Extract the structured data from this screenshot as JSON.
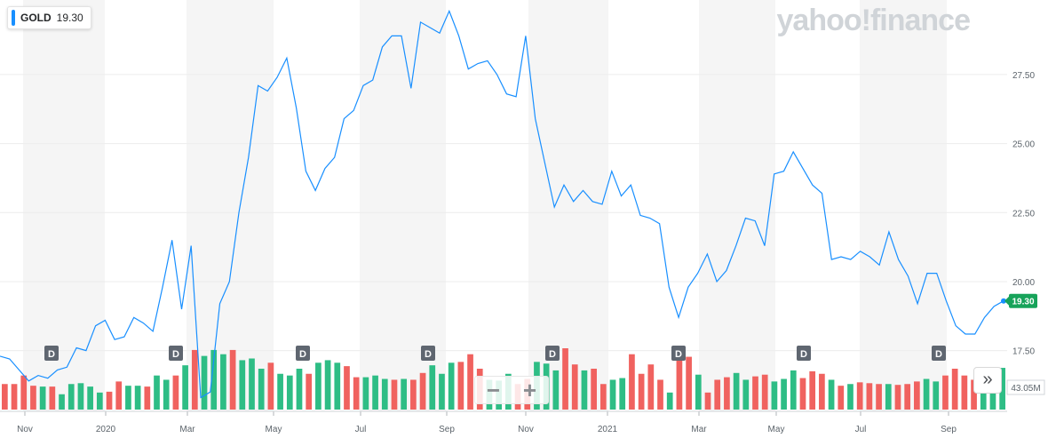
{
  "ticker": {
    "symbol": "GOLD",
    "price": "19.30"
  },
  "brand": "yahoo!finance",
  "zoom": {
    "minus": "−",
    "plus": "+"
  },
  "expand_icon": "»",
  "colors": {
    "line": "#188fff",
    "up": "#2ebd85",
    "down": "#f0625f",
    "badge": "#5f6670",
    "last": "#17a35a"
  },
  "chart_data": {
    "type": "line",
    "title": "",
    "xlabel": "",
    "ylabel": "",
    "ylim": [
      15.3,
      30.2
    ],
    "yticks": [
      "17.50",
      "20.00",
      "22.50",
      "25.00",
      "27.50"
    ],
    "xticks": [
      "Nov",
      "2020",
      "Mar",
      "May",
      "Jul",
      "Sep",
      "Nov",
      "2021",
      "Mar",
      "May",
      "Jul",
      "Sep"
    ],
    "grid": true,
    "last_price_label": "19.30",
    "volume_label": "43.05M",
    "dividend_markers": [
      "D",
      "D",
      "D",
      "D",
      "D",
      "D",
      "D",
      "D"
    ],
    "series": [
      {
        "values": [
          17.3,
          17.2,
          16.8,
          16.4,
          16.6,
          16.5,
          16.8,
          16.9,
          17.6,
          17.5,
          18.4,
          18.6,
          17.9,
          18.0,
          18.7,
          18.5,
          18.2,
          19.8,
          21.5,
          19.0,
          21.3,
          15.8,
          16.0,
          19.2,
          20.0,
          22.5,
          24.5,
          27.1,
          26.9,
          27.4,
          28.1,
          26.3,
          24.0,
          23.3,
          24.1,
          24.5,
          25.9,
          26.2,
          27.1,
          27.3,
          28.5,
          28.9,
          28.9,
          27.0,
          29.4,
          29.2,
          29.0,
          29.8,
          28.9,
          27.7,
          27.9,
          28.0,
          27.5,
          26.8,
          26.7,
          28.9,
          25.9,
          24.3,
          22.7,
          23.5,
          22.9,
          23.3,
          22.9,
          22.8,
          24.0,
          23.1,
          23.5,
          22.4,
          22.3,
          22.1,
          19.8,
          18.7,
          19.8,
          20.3,
          21.0,
          20.0,
          20.4,
          21.3,
          22.3,
          22.2,
          21.3,
          23.9,
          24.0,
          24.7,
          24.1,
          23.5,
          23.2,
          20.8,
          20.9,
          20.8,
          21.1,
          20.9,
          20.6,
          21.8,
          20.8,
          20.2,
          19.2,
          20.3,
          20.3,
          19.3,
          18.4,
          18.1,
          18.1,
          18.7,
          19.1,
          19.3
        ]
      }
    ],
    "volume": {
      "max": 120,
      "values": [
        30,
        30,
        40,
        28,
        27,
        27,
        18,
        30,
        31,
        27,
        20,
        21,
        33,
        28,
        28,
        27,
        40,
        35,
        40,
        52,
        70,
        63,
        70,
        65,
        70,
        58,
        60,
        48,
        55,
        42,
        40,
        48,
        42,
        55,
        58,
        55,
        51,
        38,
        38,
        40,
        36,
        35,
        36,
        35,
        43,
        52,
        42,
        55,
        56,
        65,
        48,
        35,
        34,
        42,
        30,
        36,
        56,
        54,
        46,
        72,
        53,
        46,
        48,
        30,
        35,
        37,
        65,
        42,
        53,
        35,
        20,
        62,
        62,
        41,
        20,
        35,
        38,
        43,
        35,
        39,
        41,
        33,
        36,
        46,
        37,
        45,
        42,
        35,
        28,
        30,
        32,
        31,
        30,
        30,
        29,
        30,
        33,
        36,
        33,
        40,
        48,
        40,
        35,
        50,
        38,
        49
      ],
      "up": [
        0,
        0,
        0,
        0,
        1,
        0,
        1,
        1,
        1,
        1,
        1,
        0,
        0,
        1,
        1,
        0,
        1,
        1,
        0,
        1,
        0,
        1,
        1,
        1,
        0,
        1,
        1,
        1,
        0,
        1,
        1,
        1,
        0,
        1,
        1,
        1,
        0,
        0,
        1,
        1,
        1,
        0,
        1,
        0,
        0,
        1,
        1,
        1,
        0,
        0,
        0,
        1,
        1,
        1,
        0,
        0,
        1,
        1,
        1,
        0,
        0,
        1,
        0,
        0,
        1,
        1,
        0,
        0,
        0,
        0,
        1,
        0,
        0,
        1,
        0,
        0,
        0,
        1,
        1,
        0,
        0,
        1,
        1,
        1,
        0,
        0,
        0,
        1,
        0,
        1,
        0,
        0,
        0,
        1,
        0,
        0,
        0,
        1,
        1,
        0,
        0,
        0,
        0,
        1,
        1,
        1
      ]
    }
  }
}
